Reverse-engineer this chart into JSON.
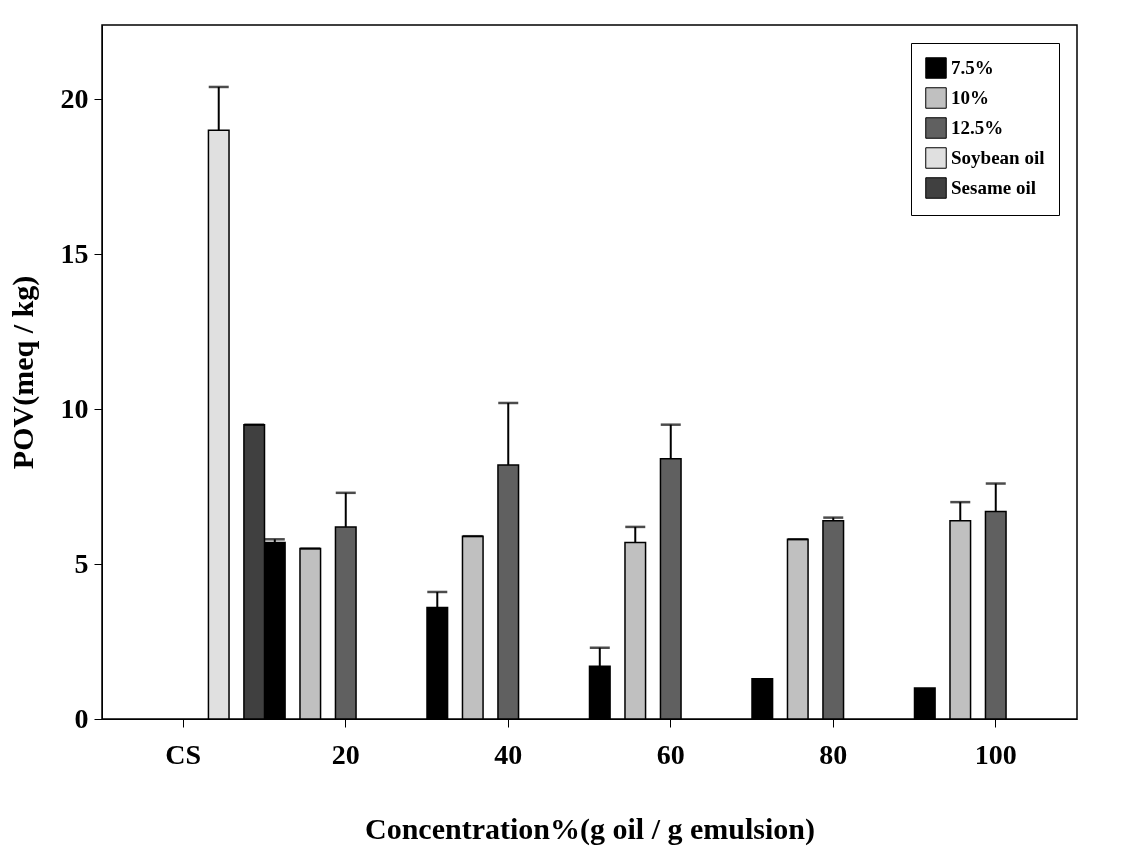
{
  "chart_data": {
    "type": "bar",
    "xlabel": "Concentration%(g oil / g emulsion)",
    "ylabel": "POV(meq / kg)",
    "categories": [
      "CS",
      "20",
      "40",
      "60",
      "80",
      "100"
    ],
    "series": [
      {
        "name": "7.5%",
        "color": "#000000",
        "values": [
          null,
          5.7,
          3.6,
          1.7,
          1.3,
          1.0
        ],
        "errors": [
          null,
          0.1,
          0.5,
          0.6,
          null,
          null
        ]
      },
      {
        "name": "10%",
        "color": "#c0c0c0",
        "values": [
          null,
          5.5,
          5.9,
          5.7,
          5.8,
          6.4
        ],
        "errors": [
          null,
          0,
          0,
          0.5,
          0,
          0.6
        ]
      },
      {
        "name": "12.5%",
        "color": "#606060",
        "values": [
          null,
          6.2,
          8.2,
          8.4,
          6.4,
          6.7
        ],
        "errors": [
          null,
          1.1,
          2.0,
          1.1,
          0.1,
          0.9
        ]
      },
      {
        "name": "Soybean oil",
        "color": "#e0e0e0",
        "values": [
          19.0,
          null,
          null,
          null,
          null,
          null
        ],
        "errors": [
          1.4,
          null,
          null,
          null,
          null,
          null
        ]
      },
      {
        "name": "Sesame oil",
        "color": "#404040",
        "values": [
          9.5,
          null,
          null,
          null,
          null,
          null
        ],
        "errors": [
          0,
          null,
          null,
          null,
          null,
          null
        ]
      }
    ],
    "ylim": [
      0,
      22.4
    ],
    "yticks": [
      0,
      5,
      10,
      15,
      20
    ],
    "grid": false,
    "legend": "top right"
  }
}
